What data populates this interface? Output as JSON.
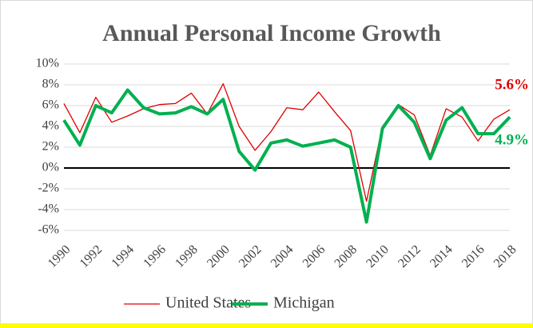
{
  "chart_data": {
    "type": "line",
    "title": "Annual Personal Income Growth",
    "x": [
      1990,
      1991,
      1992,
      1993,
      1994,
      1995,
      1996,
      1997,
      1998,
      1999,
      2000,
      2001,
      2002,
      2003,
      2004,
      2005,
      2006,
      2007,
      2008,
      2009,
      2010,
      2011,
      2012,
      2013,
      2014,
      2015,
      2016,
      2017,
      2018
    ],
    "xlim": [
      1990,
      2018
    ],
    "xticks": [
      1990,
      1992,
      1994,
      1996,
      1998,
      2000,
      2002,
      2004,
      2006,
      2008,
      2010,
      2012,
      2014,
      2016,
      2018
    ],
    "ylim": [
      -6,
      10
    ],
    "yticks": [
      {
        "value": -6,
        "label": "-6%"
      },
      {
        "value": -4,
        "label": "-4%"
      },
      {
        "value": -2,
        "label": "-2%"
      },
      {
        "value": 0,
        "label": "0%"
      },
      {
        "value": 2,
        "label": "2%"
      },
      {
        "value": 4,
        "label": "4%"
      },
      {
        "value": 6,
        "label": "6%"
      },
      {
        "value": 8,
        "label": "8%"
      },
      {
        "value": 10,
        "label": "10%"
      }
    ],
    "grid": true,
    "legend": "bottom",
    "series": [
      {
        "name": "United States",
        "color": "#e00000",
        "values": [
          6.2,
          3.4,
          6.8,
          4.4,
          5.0,
          5.7,
          6.1,
          6.2,
          7.2,
          5.2,
          8.1,
          4.0,
          1.7,
          3.5,
          5.8,
          5.6,
          7.3,
          5.4,
          3.6,
          -3.2,
          4.0,
          6.1,
          5.1,
          1.2,
          5.7,
          4.9,
          2.6,
          4.7,
          5.6
        ],
        "value_labels": [
          null,
          null,
          null,
          null,
          null,
          null,
          null,
          null,
          null,
          null,
          null,
          null,
          null,
          null,
          null,
          null,
          null,
          null,
          null,
          null,
          null,
          null,
          null,
          null,
          null,
          null,
          null,
          null,
          "5.6%"
        ]
      },
      {
        "name": "Michigan",
        "color": "#00b050",
        "values": [
          4.6,
          2.2,
          6.0,
          5.3,
          7.5,
          5.8,
          5.2,
          5.3,
          5.9,
          5.2,
          6.6,
          1.6,
          -0.2,
          2.4,
          2.7,
          2.1,
          2.4,
          2.7,
          2.0,
          -5.2,
          3.8,
          6.0,
          4.4,
          0.9,
          4.6,
          5.8,
          3.3,
          3.3,
          4.9
        ],
        "value_labels": [
          null,
          null,
          null,
          null,
          null,
          null,
          null,
          null,
          null,
          null,
          null,
          null,
          null,
          null,
          null,
          null,
          null,
          null,
          null,
          null,
          null,
          null,
          null,
          null,
          null,
          null,
          null,
          null,
          "4.9%"
        ]
      }
    ]
  }
}
